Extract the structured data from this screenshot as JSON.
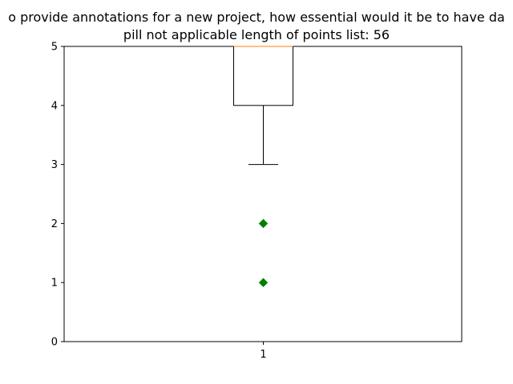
{
  "chart_data": {
    "type": "box",
    "title_line_1": "o provide annotations for a new project, how essential would it be to have da",
    "title_line_2": "pill    not applicable    length of points list: 56",
    "categories": [
      "1"
    ],
    "ylim": [
      0,
      5
    ],
    "yticks": [
      "0",
      "1",
      "2",
      "3",
      "4",
      "5"
    ],
    "xticks": [
      "1"
    ],
    "box": {
      "q1": 4,
      "median": 5,
      "q3": 5,
      "whisker_low": 3,
      "whisker_high": 5
    },
    "outliers": [
      2,
      1
    ],
    "colors": {
      "box": "#000000",
      "median": "#ff7f0e",
      "outlier": "#008000"
    },
    "grid": false
  }
}
